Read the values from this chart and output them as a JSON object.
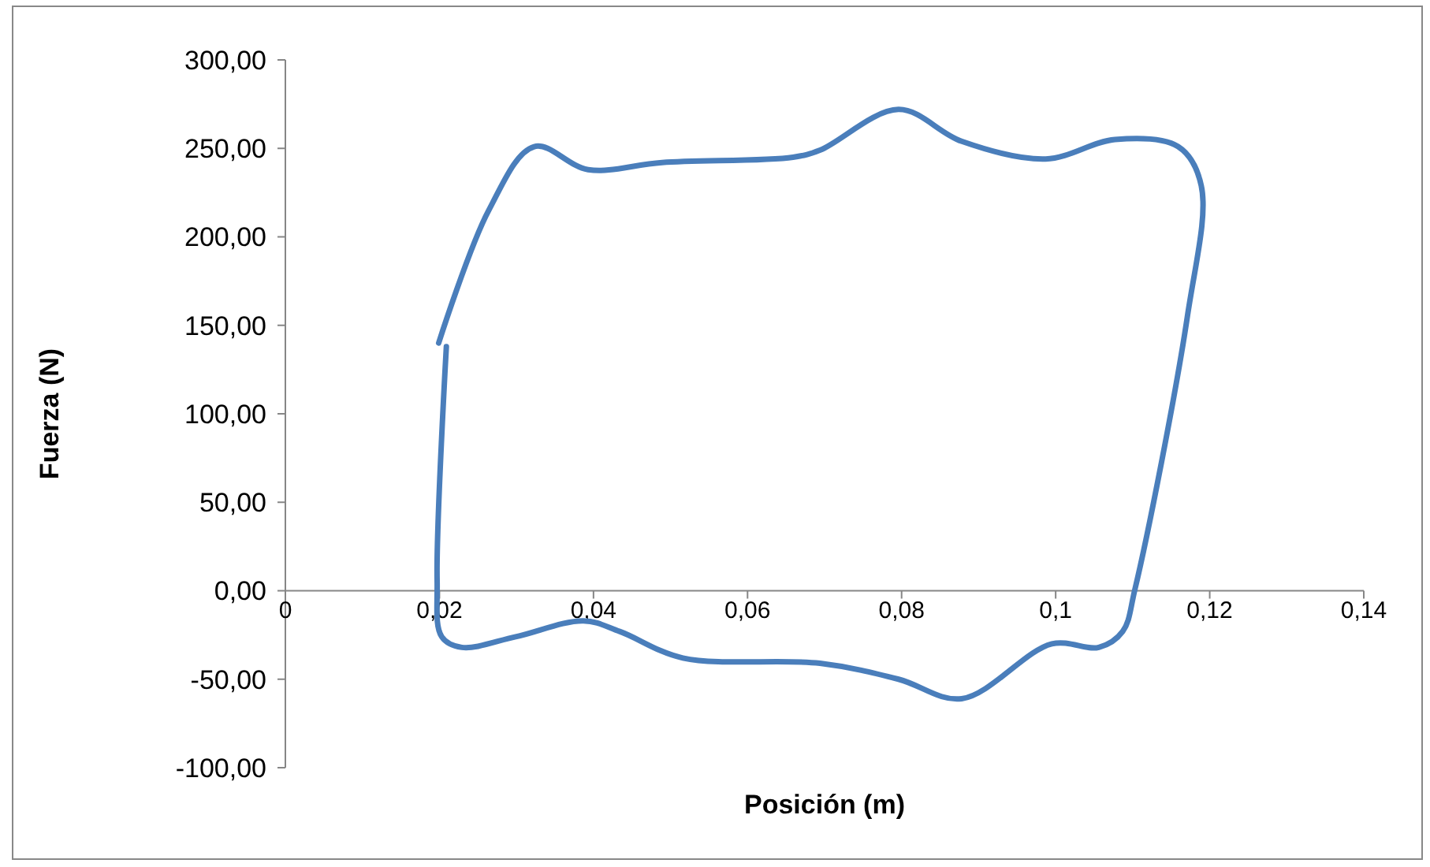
{
  "chart_data": {
    "type": "line",
    "xlabel": "Posición (m)",
    "ylabel": "Fuerza (N)",
    "series": [
      {
        "color": "#4a7ebb",
        "x": [
          0.0209,
          0.0197,
          0.0203,
          0.0229,
          0.0299,
          0.0387,
          0.0434,
          0.0516,
          0.0694,
          0.0796,
          0.0878,
          0.0995,
          0.1056,
          0.1087,
          0.1103,
          0.1171,
          0.1189,
          0.1159,
          0.1077,
          0.0987,
          0.0878,
          0.0796,
          0.0694,
          0.0659,
          0.0489,
          0.0393,
          0.0323,
          0.0264,
          0.0199
        ],
        "values": [
          138,
          6,
          -26,
          -32,
          -26,
          -17,
          -23,
          -38,
          -41,
          -50,
          -61,
          -30,
          -32,
          -23,
          1,
          155,
          229,
          251,
          255,
          244,
          254,
          272,
          249,
          245,
          242,
          238,
          251,
          215,
          140
        ]
      }
    ],
    "xlim": [
      0,
      0.14
    ],
    "xticks": [
      {
        "value": 0,
        "label": "0"
      },
      {
        "value": 0.02,
        "label": "0,02"
      },
      {
        "value": 0.04,
        "label": "0,04"
      },
      {
        "value": 0.06,
        "label": "0,06"
      },
      {
        "value": 0.08,
        "label": "0,08"
      },
      {
        "value": 0.1,
        "label": "0,1"
      },
      {
        "value": 0.12,
        "label": "0,12"
      },
      {
        "value": 0.14,
        "label": "0,14"
      }
    ],
    "ylim": [
      -100,
      300
    ],
    "yticks": [
      {
        "value": -100,
        "label": "-100,00"
      },
      {
        "value": -50,
        "label": "-50,00"
      },
      {
        "value": 0,
        "label": "0,00"
      },
      {
        "value": 50,
        "label": "50,00"
      },
      {
        "value": 100,
        "label": "100,00"
      },
      {
        "value": 150,
        "label": "150,00"
      },
      {
        "value": 200,
        "label": "200,00"
      },
      {
        "value": 250,
        "label": "250,00"
      },
      {
        "value": 300,
        "label": "300,00"
      }
    ],
    "grid": false,
    "marker": "none",
    "line_style": "solid"
  }
}
